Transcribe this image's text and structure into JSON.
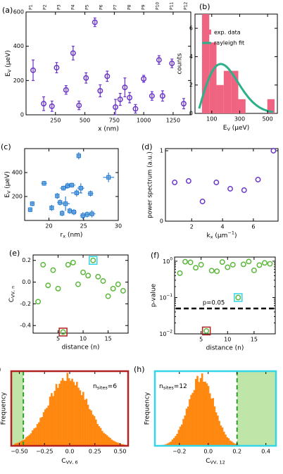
{
  "colors": {
    "purple": "#6a35c8",
    "blue": "#2a7fd4",
    "green_marker": "#5cb83a",
    "hist_pink": "#ef6480",
    "rayleigh_teal": "#2bb08a",
    "orange_hist": "#ff8000",
    "shade_green": "#bfe6a8",
    "dashed_green": "#2e9d2e",
    "red_frame": "#b22222",
    "cyan_frame": "#33d6e8",
    "label_green": "#1aa61a"
  },
  "chart_data": [
    {
      "id": "a",
      "panel_label": "(a)",
      "type": "scatter",
      "xlabel": "x (nm)",
      "ylabel_main": "E",
      "ylabel_sub": "V",
      "ylabel_unit": " (μeV)",
      "xlim": [
        0,
        1400
      ],
      "ylim": [
        0,
        600
      ],
      "xticks": [
        250,
        500,
        750,
        1000,
        1250
      ],
      "yticks": [
        0,
        200,
        400,
        600
      ],
      "top_labels": [
        "P1",
        "P2",
        "P3",
        "P4",
        "P5",
        "P6",
        "P7",
        "P8",
        "P9",
        "P10",
        "P11",
        "P12"
      ],
      "top_label_categories": [
        "end",
        "mid",
        "mid",
        "mid",
        "mid",
        "mid",
        "mid",
        "mid",
        "mid",
        "mid",
        "mid",
        "end"
      ],
      "points": [
        {
          "x": 60,
          "y": 260,
          "err": 60
        },
        {
          "x": 150,
          "y": 65,
          "err": 40
        },
        {
          "x": 220,
          "y": 50,
          "err": 30
        },
        {
          "x": 260,
          "y": 275,
          "err": 30
        },
        {
          "x": 340,
          "y": 145,
          "err": 25
        },
        {
          "x": 400,
          "y": 360,
          "err": 40
        },
        {
          "x": 450,
          "y": 55,
          "err": 25
        },
        {
          "x": 510,
          "y": 215,
          "err": 30
        },
        {
          "x": 585,
          "y": 540,
          "err": 25
        },
        {
          "x": 630,
          "y": 140,
          "err": 35
        },
        {
          "x": 690,
          "y": 225,
          "err": 30
        },
        {
          "x": 760,
          "y": 45,
          "err": 45
        },
        {
          "x": 800,
          "y": 90,
          "err": 35
        },
        {
          "x": 840,
          "y": 160,
          "err": 55
        },
        {
          "x": 880,
          "y": 100,
          "err": 30
        },
        {
          "x": 930,
          "y": 35,
          "err": 25
        },
        {
          "x": 1000,
          "y": 210,
          "err": 20
        },
        {
          "x": 1070,
          "y": 110,
          "err": 25
        },
        {
          "x": 1130,
          "y": 320,
          "err": 25
        },
        {
          "x": 1160,
          "y": 110,
          "err": 30
        },
        {
          "x": 1240,
          "y": 300,
          "err": 25
        },
        {
          "x": 1340,
          "y": 65,
          "err": 30
        }
      ]
    },
    {
      "id": "b",
      "panel_label": "(b)",
      "type": "bar",
      "xlabel_main": "E",
      "xlabel_sub": "V",
      "xlabel_unit": " (μeV)",
      "ylabel": "counts",
      "xlim": [
        -20,
        570
      ],
      "ylim": [
        0,
        7
      ],
      "xticks": [
        100,
        300,
        500
      ],
      "yticks": [
        0,
        2,
        4,
        6
      ],
      "legend": [
        "exp. data",
        "rayleigh fit"
      ],
      "bin_width": 52,
      "bins": [
        {
          "left": 30,
          "count": 7
        },
        {
          "left": 82,
          "count": 5
        },
        {
          "left": 134,
          "count": 2
        },
        {
          "left": 186,
          "count": 3
        },
        {
          "left": 238,
          "count": 3
        },
        {
          "left": 290,
          "count": 1
        },
        {
          "left": 342,
          "count": 0
        },
        {
          "left": 394,
          "count": 0
        },
        {
          "left": 446,
          "count": 0
        },
        {
          "left": 498,
          "count": 1
        }
      ],
      "fit": {
        "sigma": 165,
        "scale": 3.48
      }
    },
    {
      "id": "c",
      "panel_label": "(c)",
      "type": "scatter",
      "xlabel_main": "r",
      "xlabel_sub": "x",
      "xlabel_unit": " (nm)",
      "ylabel_main": "E",
      "ylabel_sub": "V",
      "ylabel_unit": " (μeV)",
      "xlim": [
        16.5,
        30
      ],
      "ylim": [
        0,
        600
      ],
      "xticks": [
        20,
        25,
        30
      ],
      "yticks": [
        200,
        400
      ],
      "points": [
        {
          "x": 17.3,
          "y": 90,
          "xerr": 0.3,
          "yerr": 20
        },
        {
          "x": 17.6,
          "y": 140,
          "xerr": 0.3,
          "yerr": 20
        },
        {
          "x": 19.3,
          "y": 310,
          "xerr": 0.4,
          "yerr": 20
        },
        {
          "x": 20.4,
          "y": 105,
          "xerr": 0.3,
          "yerr": 25
        },
        {
          "x": 21.2,
          "y": 205,
          "xerr": 0.3,
          "yerr": 25
        },
        {
          "x": 21.6,
          "y": 150,
          "xerr": 0.4,
          "yerr": 25
        },
        {
          "x": 21.9,
          "y": 60,
          "xerr": 0.3,
          "yerr": 25
        },
        {
          "x": 22.1,
          "y": 270,
          "xerr": 0.5,
          "yerr": 20
        },
        {
          "x": 22.4,
          "y": 140,
          "xerr": 0.6,
          "yerr": 60
        },
        {
          "x": 22.7,
          "y": 290,
          "xerr": 0.4,
          "yerr": 25
        },
        {
          "x": 23.0,
          "y": 80,
          "xerr": 0.3,
          "yerr": 25
        },
        {
          "x": 23.3,
          "y": 295,
          "xerr": 0.5,
          "yerr": 20
        },
        {
          "x": 23.6,
          "y": 70,
          "xerr": 0.4,
          "yerr": 25
        },
        {
          "x": 24.0,
          "y": 230,
          "xerr": 0.8,
          "yerr": 30
        },
        {
          "x": 24.3,
          "y": 540,
          "xerr": 0.3,
          "yerr": 30
        },
        {
          "x": 24.6,
          "y": 270,
          "xerr": 0.5,
          "yerr": 40
        },
        {
          "x": 24.9,
          "y": 40,
          "xerr": 0.4,
          "yerr": 30
        },
        {
          "x": 25.5,
          "y": 50,
          "xerr": 0.4,
          "yerr": 25
        },
        {
          "x": 26.0,
          "y": 225,
          "xerr": 0.4,
          "yerr": 25
        },
        {
          "x": 26.2,
          "y": 55,
          "xerr": 0.5,
          "yerr": 30
        },
        {
          "x": 28.6,
          "y": 360,
          "xerr": 0.8,
          "yerr": 40
        }
      ]
    },
    {
      "id": "d",
      "panel_label": "(d)",
      "type": "scatter",
      "xlabel_main": "k",
      "xlabel_sub": "x",
      "xlabel_unit": " (μm",
      "xlabel_sup": "−1",
      "xlabel_close": ")",
      "ylabel": "power spectrum (a.u.)",
      "xlim": [
        0.3,
        7.6
      ],
      "ylim": [
        0,
        1.03
      ],
      "xticks": [
        2,
        4,
        6
      ],
      "yticks": [
        0,
        1
      ],
      "points": [
        {
          "x": 0.9,
          "y": 0.55
        },
        {
          "x": 1.8,
          "y": 0.57
        },
        {
          "x": 2.7,
          "y": 0.28
        },
        {
          "x": 3.6,
          "y": 0.55
        },
        {
          "x": 4.5,
          "y": 0.46
        },
        {
          "x": 5.4,
          "y": 0.44
        },
        {
          "x": 6.3,
          "y": 0.59
        },
        {
          "x": 7.3,
          "y": 1.0
        }
      ]
    },
    {
      "id": "e",
      "panel_label": "(e)",
      "type": "scatter",
      "xlabel": "distance (n)",
      "ylabel_main": "C",
      "ylabel_sub": "VV, n",
      "xlim": [
        0,
        19
      ],
      "ylim": [
        -0.47,
        0.25
      ],
      "xticks": [
        5,
        10,
        15
      ],
      "yticks": [
        -0.4,
        -0.2,
        0.0,
        0.2
      ],
      "points": [
        {
          "x": 1,
          "y": -0.18
        },
        {
          "x": 2,
          "y": 0.16
        },
        {
          "x": 3,
          "y": -0.03
        },
        {
          "x": 4,
          "y": 0.11
        },
        {
          "x": 5,
          "y": -0.06
        },
        {
          "x": 6,
          "y": -0.46
        },
        {
          "x": 7,
          "y": 0.16
        },
        {
          "x": 8,
          "y": 0.18
        },
        {
          "x": 9,
          "y": -0.02
        },
        {
          "x": 10,
          "y": 0.09
        },
        {
          "x": 11,
          "y": 0.06
        },
        {
          "x": 12,
          "y": 0.2
        },
        {
          "x": 13,
          "y": 0.05
        },
        {
          "x": 14,
          "y": 0.01
        },
        {
          "x": 15,
          "y": -0.13
        },
        {
          "x": 16,
          "y": -0.06
        },
        {
          "x": 17,
          "y": -0.02
        },
        {
          "x": 18,
          "y": -0.08
        }
      ],
      "highlight": [
        {
          "x": 12,
          "color": "cyan"
        },
        {
          "x": 6,
          "color": "red"
        }
      ]
    },
    {
      "id": "f",
      "panel_label": "(f)",
      "type": "scatter",
      "xlabel": "distance (n)",
      "ylabel": "p-value",
      "yscale": "log",
      "xlim": [
        0,
        19
      ],
      "ylim": [
        0.01,
        1.3
      ],
      "xticks": [
        5,
        10,
        15
      ],
      "ytick_values": [
        0.01,
        0.1,
        1
      ],
      "ytick_bases": [
        "10",
        "10",
        "10"
      ],
      "ytick_exps": [
        "−2",
        "−1",
        "0"
      ],
      "threshold": {
        "value": 0.05,
        "label": "p=0.05"
      },
      "points": [
        {
          "x": 1,
          "y": 0.47
        },
        {
          "x": 2,
          "y": 0.97
        },
        {
          "x": 3,
          "y": 0.93
        },
        {
          "x": 4,
          "y": 0.66
        },
        {
          "x": 5,
          "y": 0.8
        },
        {
          "x": 6,
          "y": 0.012
        },
        {
          "x": 7,
          "y": 0.55
        },
        {
          "x": 8,
          "y": 0.53
        },
        {
          "x": 9,
          "y": 0.95
        },
        {
          "x": 10,
          "y": 0.68
        },
        {
          "x": 11,
          "y": 0.8
        },
        {
          "x": 12,
          "y": 0.1
        },
        {
          "x": 13,
          "y": 0.82
        },
        {
          "x": 14,
          "y": 0.98
        },
        {
          "x": 15,
          "y": 0.56
        },
        {
          "x": 16,
          "y": 0.78
        },
        {
          "x": 17,
          "y": 0.9
        },
        {
          "x": 18,
          "y": 0.85
        }
      ],
      "highlight": [
        {
          "x": 12,
          "color": "cyan"
        },
        {
          "x": 6,
          "color": "red"
        }
      ]
    },
    {
      "id": "g",
      "panel_label": "(g)",
      "type": "histogram",
      "xlabel_main": "C",
      "xlabel_sub": "VV, 6",
      "ylabel": "Frequency",
      "xlim": [
        -0.58,
        0.58
      ],
      "xticks": [
        -0.5,
        -0.25,
        0.0,
        0.25,
        0.5
      ],
      "annotation_main": "n",
      "annotation_sub": "sites",
      "annotation_val": "=6",
      "threshold_x": -0.46,
      "shade_side": "left",
      "distribution": {
        "mean": -0.02,
        "sd": 0.2,
        "range": [
          -0.55,
          0.55
        ],
        "bins": 70
      }
    },
    {
      "id": "h",
      "panel_label": "(h)",
      "type": "histogram",
      "xlabel_main": "C",
      "xlabel_sub": "VV, 12",
      "ylabel": "Frequency",
      "xlim": [
        -0.37,
        0.47
      ],
      "xticks": [
        -0.2,
        0.0,
        0.2,
        0.4
      ],
      "annotation_main": "n",
      "annotation_sub": "sites",
      "annotation_val": "=12",
      "threshold_x": 0.2,
      "shade_side": "right",
      "distribution": {
        "mean": -0.05,
        "sd": 0.09,
        "range": [
          -0.33,
          0.32
        ],
        "bins": 60
      }
    }
  ]
}
